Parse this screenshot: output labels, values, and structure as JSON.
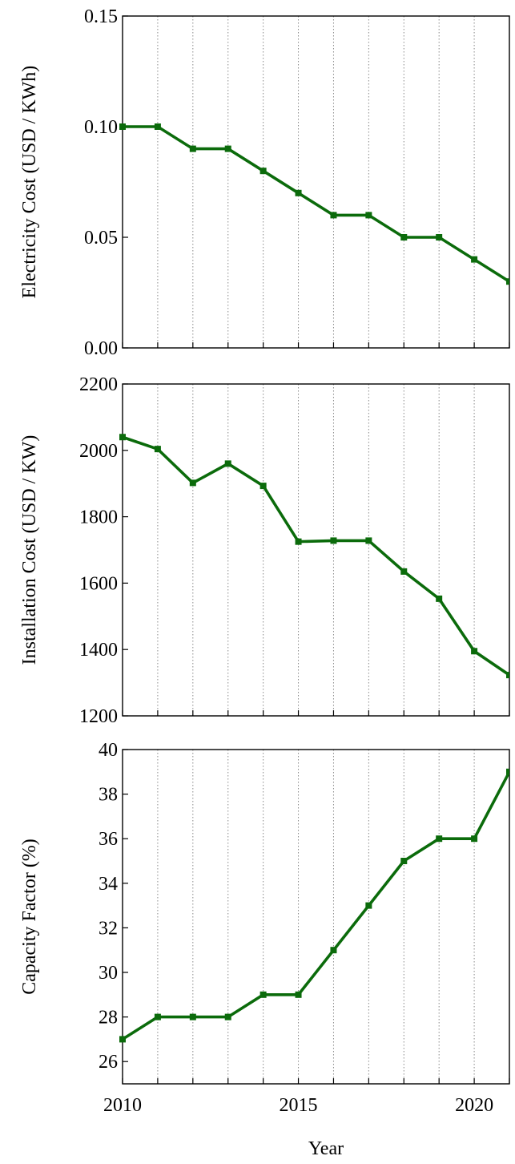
{
  "figure": {
    "xlabel": "Year",
    "line_color": "#0b6b0b",
    "grid": "vertical-dotted"
  },
  "chart_data": [
    {
      "type": "line",
      "ylabel": "Electricity Cost (USD / KWh)",
      "x": [
        2010,
        2011,
        2012,
        2013,
        2014,
        2015,
        2016,
        2017,
        2018,
        2019,
        2020,
        2021
      ],
      "y": [
        0.1,
        0.1,
        0.09,
        0.09,
        0.08,
        0.07,
        0.06,
        0.06,
        0.05,
        0.05,
        0.04,
        0.03
      ],
      "xlim": [
        2010,
        2021
      ],
      "ylim": [
        0.0,
        0.15
      ],
      "yticks": [
        "0.00",
        "0.05",
        "0.10",
        "0.15"
      ]
    },
    {
      "type": "line",
      "ylabel": "Installation Cost (USD / KW)",
      "x": [
        2010,
        2011,
        2012,
        2013,
        2014,
        2015,
        2016,
        2017,
        2018,
        2019,
        2020,
        2021
      ],
      "y": [
        2040,
        2004,
        1902,
        1960,
        1893,
        1725,
        1728,
        1728,
        1635,
        1553,
        1395,
        1323
      ],
      "xlim": [
        2010,
        2021
      ],
      "ylim": [
        1200,
        2200
      ],
      "yticks": [
        "1200",
        "1400",
        "1600",
        "1800",
        "2000",
        "2200"
      ]
    },
    {
      "type": "line",
      "ylabel": "Capacity Factor (%)",
      "x": [
        2010,
        2011,
        2012,
        2013,
        2014,
        2015,
        2016,
        2017,
        2018,
        2019,
        2020,
        2021
      ],
      "y": [
        27,
        28,
        28,
        28,
        29,
        29,
        31,
        33,
        35,
        36,
        36,
        39
      ],
      "xlim": [
        2010,
        2021
      ],
      "ylim": [
        25,
        40
      ],
      "yticks": [
        "26",
        "28",
        "30",
        "32",
        "34",
        "36",
        "38",
        "40"
      ],
      "xticks": [
        "2010",
        "2015",
        "2020"
      ]
    }
  ]
}
